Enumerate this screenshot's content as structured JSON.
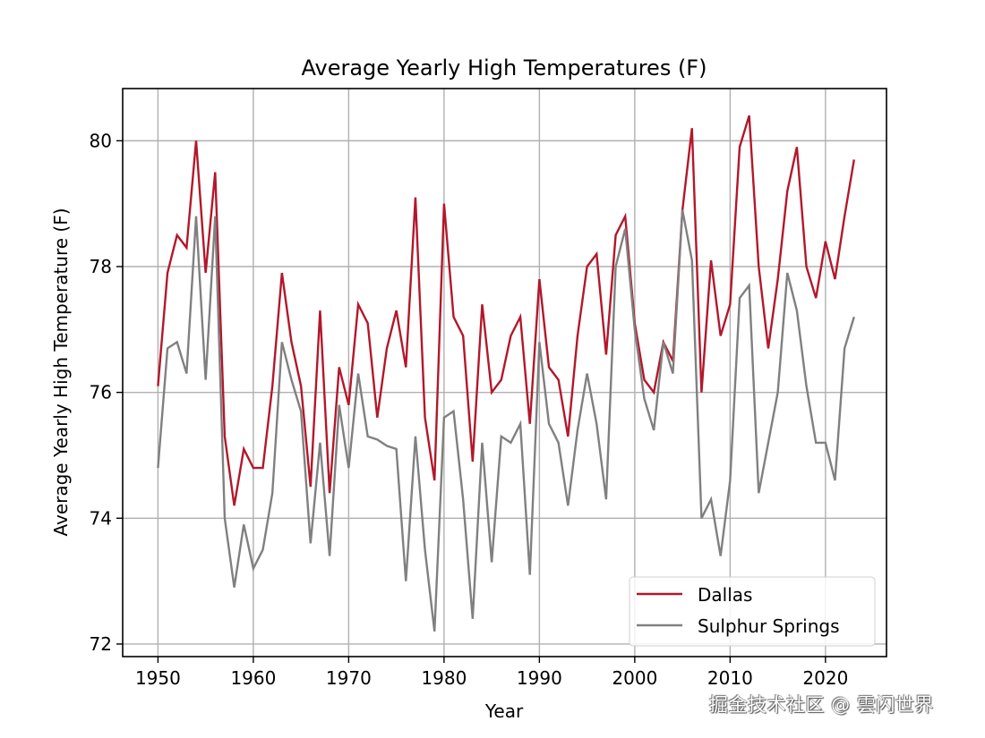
{
  "chart_data": {
    "type": "line",
    "title": "Average Yearly High Temperatures (F)",
    "xlabel": "Year",
    "ylabel": "Average Yearly High Temperature (F)",
    "xlim": [
      1946.3,
      2026.4
    ],
    "ylim": [
      71.8,
      80.83
    ],
    "xticks": [
      1950,
      1960,
      1970,
      1980,
      1990,
      2000,
      2010,
      2020
    ],
    "yticks": [
      72,
      74,
      76,
      78,
      80
    ],
    "grid": true,
    "legend_position": "bottom-right",
    "x": [
      1950,
      1951,
      1952,
      1953,
      1954,
      1955,
      1956,
      1957,
      1958,
      1959,
      1960,
      1961,
      1962,
      1963,
      1964,
      1965,
      1966,
      1967,
      1968,
      1969,
      1970,
      1971,
      1972,
      1973,
      1974,
      1975,
      1976,
      1977,
      1978,
      1979,
      1980,
      1981,
      1982,
      1983,
      1984,
      1985,
      1986,
      1987,
      1988,
      1989,
      1990,
      1991,
      1992,
      1993,
      1994,
      1995,
      1996,
      1997,
      1998,
      1999,
      2000,
      2001,
      2002,
      2003,
      2004,
      2005,
      2006,
      2007,
      2008,
      2009,
      2010,
      2011,
      2012,
      2013,
      2014,
      2015,
      2016,
      2017,
      2018,
      2019,
      2020,
      2021,
      2022,
      2023
    ],
    "series": [
      {
        "name": "Dallas",
        "color": "#b2182b",
        "values": [
          76.1,
          77.9,
          78.5,
          78.3,
          80.0,
          77.9,
          79.5,
          75.3,
          74.2,
          75.1,
          74.8,
          74.8,
          76.1,
          77.9,
          76.8,
          76.1,
          74.5,
          77.3,
          74.4,
          76.4,
          75.8,
          77.4,
          77.1,
          75.6,
          76.7,
          77.3,
          76.4,
          79.1,
          75.6,
          74.6,
          79.0,
          77.2,
          76.9,
          74.9,
          77.4,
          76.0,
          76.2,
          76.9,
          77.2,
          75.5,
          77.8,
          76.4,
          76.2,
          75.3,
          76.9,
          78.0,
          78.2,
          76.6,
          78.5,
          78.8,
          77.1,
          76.2,
          76.0,
          76.8,
          76.5,
          78.9,
          80.2,
          76.0,
          78.1,
          76.9,
          77.4,
          79.9,
          80.4,
          78.0,
          76.7,
          77.8,
          79.2,
          79.9,
          78.0,
          77.5,
          78.4,
          77.8,
          78.8,
          79.7
        ]
      },
      {
        "name": "Sulphur Springs",
        "color": "#808080",
        "values": [
          74.8,
          76.7,
          76.8,
          76.3,
          78.8,
          76.2,
          78.8,
          74.0,
          72.9,
          73.9,
          73.2,
          73.5,
          74.4,
          76.8,
          76.2,
          75.7,
          73.6,
          75.2,
          73.4,
          75.8,
          74.8,
          76.3,
          75.3,
          75.25,
          75.15,
          75.1,
          73.0,
          75.3,
          73.5,
          72.2,
          75.6,
          75.7,
          74.3,
          72.4,
          75.2,
          73.3,
          75.3,
          75.2,
          75.5,
          73.1,
          76.8,
          75.5,
          75.2,
          74.2,
          75.4,
          76.3,
          75.5,
          74.3,
          78.0,
          78.6,
          77.0,
          75.9,
          75.4,
          76.8,
          76.3,
          78.9,
          78.1,
          74.0,
          74.3,
          73.4,
          74.6,
          77.5,
          77.7,
          74.4,
          75.2,
          76.0,
          77.9,
          77.3,
          76.1,
          75.2,
          75.2,
          74.6,
          76.7,
          77.2
        ]
      }
    ]
  },
  "watermark": "掘金技术社区 @ 雲闪世界"
}
